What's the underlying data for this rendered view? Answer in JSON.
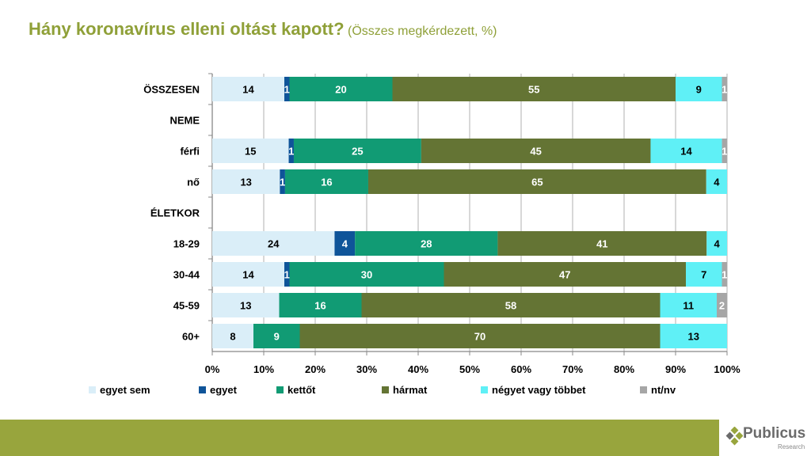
{
  "chart_data": {
    "type": "bar",
    "orientation": "horizontal",
    "stacked": true,
    "title": "Hány koronavírus elleni oltást kapott?",
    "subtitle": "(Összes megkérdezett, %)",
    "xlabel": "",
    "ylabel": "",
    "xlim": [
      0,
      100
    ],
    "x_ticks": [
      "0%",
      "10%",
      "20%",
      "30%",
      "40%",
      "50%",
      "60%",
      "70%",
      "80%",
      "90%",
      "100%"
    ],
    "grid": true,
    "legend_position": "bottom",
    "categories": [
      "ÖSSZESEN",
      "NEME",
      "férfi",
      "nő",
      "ÉLETKOR",
      "18-29",
      "30-44",
      "45-59",
      "60+"
    ],
    "series": [
      {
        "name": "egyet sem",
        "color": "#daeef8",
        "label_color": "#000000",
        "values": [
          14,
          null,
          15,
          13,
          null,
          24,
          14,
          13,
          8
        ]
      },
      {
        "name": "egyet",
        "color": "#0f5499",
        "label_color": "#ffffff",
        "values": [
          1,
          null,
          1,
          1,
          null,
          4,
          1,
          null,
          null
        ]
      },
      {
        "name": "kettőt",
        "color": "#119b74",
        "label_color": "#ffffff",
        "values": [
          20,
          null,
          25,
          16,
          null,
          28,
          30,
          16,
          9
        ]
      },
      {
        "name": "hármat",
        "color": "#647434",
        "label_color": "#ffffff",
        "values": [
          55,
          null,
          45,
          65,
          null,
          41,
          47,
          58,
          70
        ]
      },
      {
        "name": "négyet vagy többet",
        "color": "#5ff0f6",
        "label_color": "#000000",
        "values": [
          9,
          null,
          14,
          4,
          null,
          4,
          7,
          11,
          13
        ]
      },
      {
        "name": "nt/nv",
        "color": "#a6a6a6",
        "label_color": "#ffffff",
        "values": [
          1,
          null,
          1,
          0,
          null,
          null,
          1,
          2,
          null
        ]
      }
    ]
  },
  "logo": {
    "name": "Publicus",
    "tagline": "Research"
  },
  "colors": {
    "title": "#8fa038",
    "footer": "#98a53d"
  }
}
